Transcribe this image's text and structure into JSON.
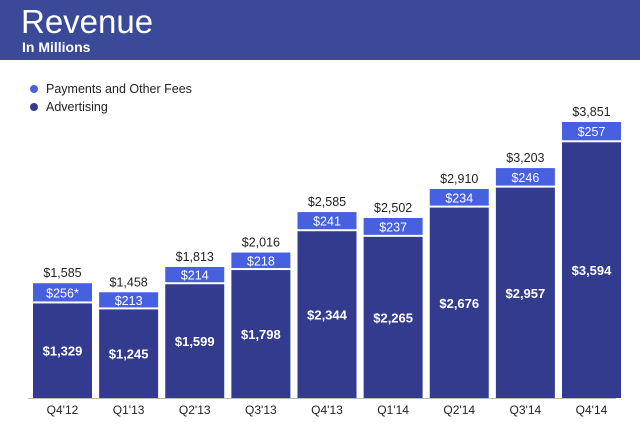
{
  "header": {
    "title": "Revenue",
    "subtitle": "In Millions"
  },
  "colors": {
    "header_bg": "#3b4a98",
    "advertising": "#333b8f",
    "payments": "#4660e0"
  },
  "legend": [
    {
      "label": "Payments and Other Fees",
      "color": "#4660e0"
    },
    {
      "label": "Advertising",
      "color": "#333b8f"
    }
  ],
  "chart_data": {
    "type": "bar",
    "stacked": true,
    "categories": [
      "Q4'12",
      "Q1'13",
      "Q2'13",
      "Q3'13",
      "Q4'13",
      "Q1'14",
      "Q2'14",
      "Q3'14",
      "Q4'14"
    ],
    "series": [
      {
        "name": "Advertising",
        "values": [
          1329,
          1245,
          1599,
          1798,
          2344,
          2265,
          2676,
          2957,
          3594
        ],
        "labels": [
          "$1,329",
          "$1,245",
          "$1,599",
          "$1,798",
          "$2,344",
          "$2,265",
          "$2,676",
          "$2,957",
          "$3,594"
        ]
      },
      {
        "name": "Payments and Other Fees",
        "values": [
          256,
          213,
          214,
          218,
          241,
          237,
          234,
          246,
          257
        ],
        "labels": [
          "$256*",
          "$213",
          "$214",
          "$218",
          "$241",
          "$237",
          "$234",
          "$246",
          "$257"
        ]
      }
    ],
    "totals": [
      1585,
      1458,
      1813,
      2016,
      2585,
      2502,
      2910,
      3203,
      3851
    ],
    "total_labels": [
      "$1,585",
      "$1,458",
      "$1,813",
      "$2,016",
      "$2,585",
      "$2,502",
      "$2,910",
      "$3,203",
      "$3,851"
    ],
    "ylim": [
      0,
      3851
    ],
    "grid": false,
    "legend_position": "top-left"
  }
}
